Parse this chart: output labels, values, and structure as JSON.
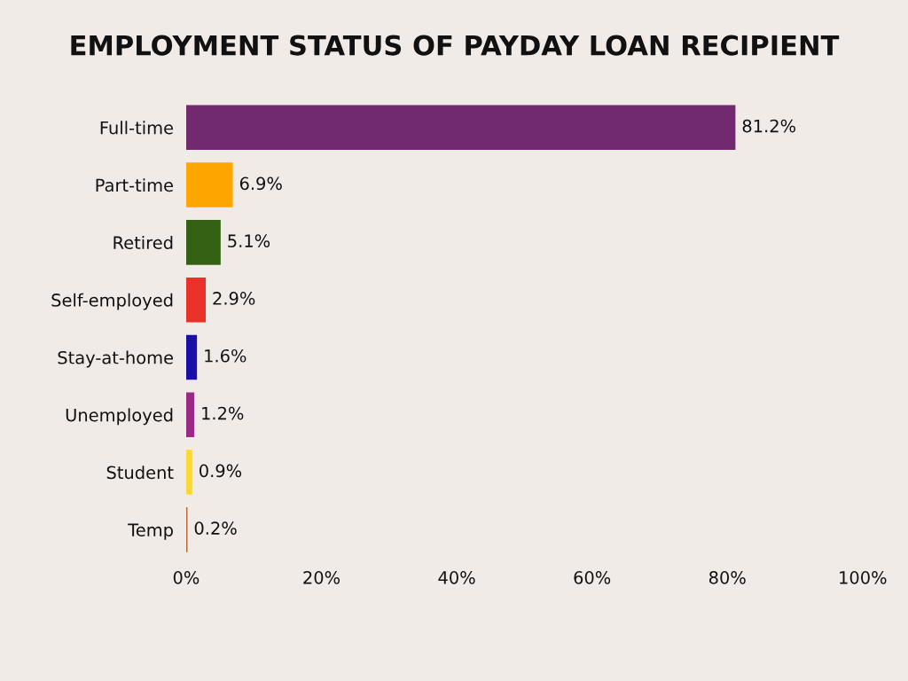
{
  "chart_data": {
    "type": "bar",
    "orientation": "horizontal",
    "title": "EMPLOYMENT STATUS OF PAYDAY LOAN RECIPIENT",
    "categories": [
      "Full-time",
      "Part-time",
      "Retired",
      "Self-employed",
      "Stay-at-home",
      "Unemployed",
      "Student",
      "Temp"
    ],
    "values": [
      81.2,
      6.9,
      5.1,
      2.9,
      1.6,
      1.2,
      0.9,
      0.2
    ],
    "value_labels": [
      "81.2%",
      "6.9%",
      "5.1%",
      "2.9%",
      "1.6%",
      "1.2%",
      "0.9%",
      "0.2%"
    ],
    "colors": [
      "#722a6e",
      "#ffa500",
      "#346114",
      "#e8322a",
      "#1a0ea8",
      "#9b2a86",
      "#fcd835",
      "#b06a3a"
    ],
    "xlim": [
      0,
      100
    ],
    "xticks": [
      {
        "value": 0,
        "label": "0%"
      },
      {
        "value": 20,
        "label": "20%"
      },
      {
        "value": 40,
        "label": "40%"
      },
      {
        "value": 60,
        "label": "60%"
      },
      {
        "value": 80,
        "label": "80%"
      },
      {
        "value": 100,
        "label": "100%"
      }
    ],
    "grid": false,
    "legend": false
  }
}
